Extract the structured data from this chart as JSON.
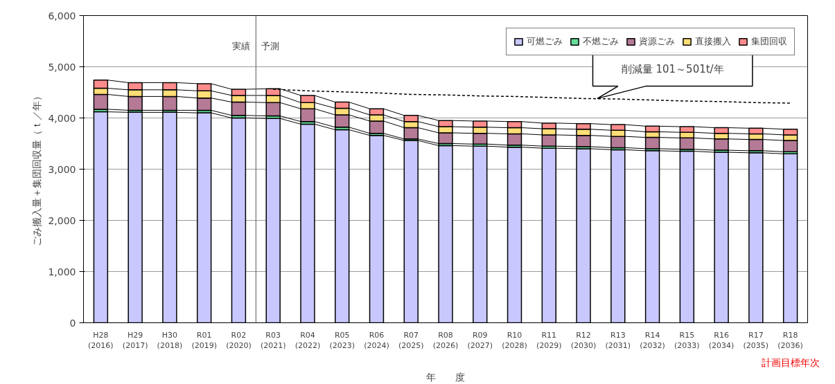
{
  "chart_data": {
    "type": "bar",
    "stacked": true,
    "xlabel": "年　　度",
    "ylabel": "ごみ搬入量＋集団回収量（ｔ／年）",
    "categories": [
      "H28\n(2016)",
      "H29\n(2017)",
      "H30\n(2018)",
      "R01\n(2019)",
      "R02\n(2020)",
      "R03\n(2021)",
      "R04\n(2022)",
      "R05\n(2023)",
      "R06\n(2024)",
      "R07\n(2025)",
      "R08\n(2026)",
      "R09\n(2027)",
      "R10\n(2028)",
      "R11\n(2029)",
      "R12\n(2030)",
      "R13\n(2031)",
      "R14\n(2032)",
      "R15\n(2033)",
      "R16\n(2034)",
      "R17\n(2035)",
      "R18\n(2036)"
    ],
    "ylim": [
      0,
      6000
    ],
    "yticks": [
      0,
      {
        "value": 1000,
        "label": "1,000"
      },
      {
        "value": 2000,
        "label": "2,000"
      },
      {
        "value": 3000,
        "label": "3,000"
      },
      {
        "value": 4000,
        "label": "4,000"
      },
      {
        "value": 5000,
        "label": "5,000"
      },
      {
        "value": 6000,
        "label": "6,000"
      }
    ],
    "grid": "y",
    "legend": "top right",
    "series": [
      {
        "name": "可燃ごみ",
        "color": "#c8c8ff",
        "values": [
          4120,
          4110,
          4110,
          4100,
          4000,
          3990,
          3880,
          3770,
          3660,
          3560,
          3460,
          3450,
          3430,
          3410,
          3400,
          3380,
          3360,
          3350,
          3330,
          3320,
          3300
        ]
      },
      {
        "name": "不燃ごみ",
        "color": "#66dd99",
        "values": [
          50,
          40,
          40,
          50,
          50,
          50,
          50,
          50,
          40,
          30,
          40,
          40,
          40,
          40,
          40,
          40,
          40,
          40,
          40,
          40,
          40
        ]
      },
      {
        "name": "資源ごみ",
        "color": "#b47a96",
        "values": [
          290,
          270,
          270,
          240,
          260,
          260,
          250,
          240,
          240,
          220,
          210,
          210,
          220,
          220,
          220,
          220,
          220,
          220,
          220,
          220,
          220
        ]
      },
      {
        "name": "直接搬入",
        "color": "#ffdd77",
        "values": [
          120,
          130,
          130,
          140,
          130,
          140,
          120,
          130,
          120,
          120,
          120,
          120,
          120,
          120,
          120,
          120,
          110,
          110,
          110,
          110,
          110
        ]
      },
      {
        "name": "集団回収",
        "color": "#ff8c8c",
        "values": [
          160,
          140,
          140,
          140,
          120,
          130,
          140,
          120,
          120,
          120,
          120,
          120,
          120,
          110,
          110,
          110,
          110,
          110,
          110,
          110,
          110
        ]
      },
      {
        "type": "line",
        "line_style": "dashed",
        "color": "#000000",
        "values": [
          null,
          null,
          null,
          null,
          null,
          4560,
          4530,
          4510,
          4490,
          4460,
          4450,
          4430,
          4420,
          4400,
          4380,
          4370,
          4350,
          4330,
          4320,
          4300,
          4290
        ]
      }
    ],
    "ref_lines": [
      {
        "axis": "x",
        "value": "R03\n(2021)"
      }
    ],
    "annotations": [
      "実績",
      "予測",
      "削減量 101～501t/年",
      "計画目標年次"
    ]
  }
}
